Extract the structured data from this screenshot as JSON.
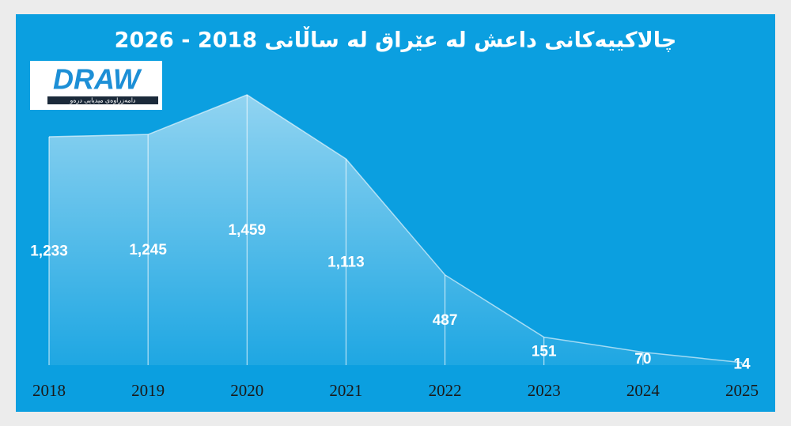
{
  "chart_data": {
    "type": "area",
    "title": "چالاکییەکانی داعش لە عێراق لە ساڵانی 2018 - 2026",
    "categories": [
      "2018",
      "2019",
      "2020",
      "2021",
      "2022",
      "2023",
      "2024",
      "2025"
    ],
    "values": [
      1233,
      1245,
      1459,
      1113,
      487,
      151,
      70,
      14
    ],
    "value_labels": [
      "1,233",
      "1,245",
      "1,459",
      "1,113",
      "487",
      "151",
      "70",
      "14"
    ],
    "color": "#ffffff"
  },
  "logo": {
    "name": "DRAW",
    "tagline": "دامەزراوەی میدیایی درەو"
  }
}
